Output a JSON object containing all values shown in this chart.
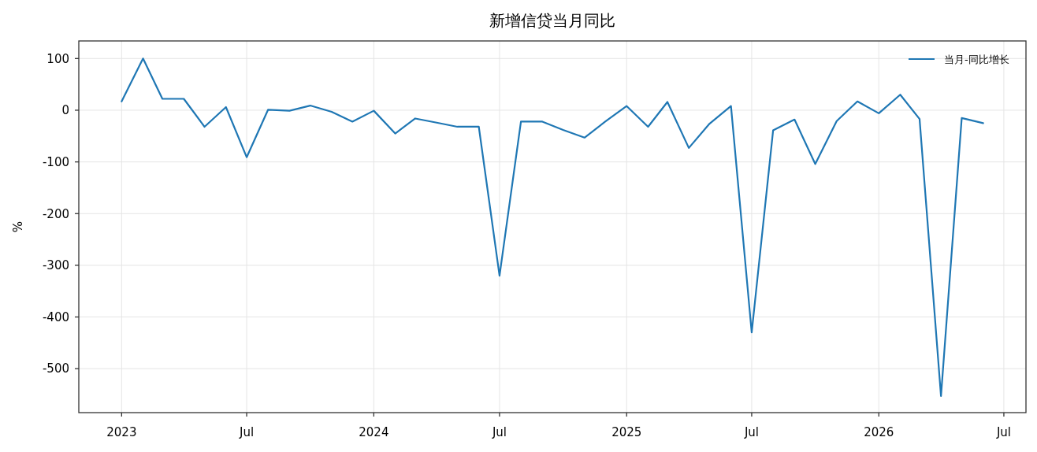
{
  "chart_data": {
    "type": "line",
    "title": "新增信贷当月同比",
    "ylabel": "%",
    "x": [
      "2023-01",
      "2023-02",
      "2023-03",
      "2023-04",
      "2023-05",
      "2023-06",
      "2023-07",
      "2023-08",
      "2023-09",
      "2023-10",
      "2023-11",
      "2023-12",
      "2024-01",
      "2024-02",
      "2024-03",
      "2024-04",
      "2024-05",
      "2024-06",
      "2024-07",
      "2024-08",
      "2024-09",
      "2024-10",
      "2024-11",
      "2024-12",
      "2025-01",
      "2025-02",
      "2025-03",
      "2025-04",
      "2025-05",
      "2025-06",
      "2025-07",
      "2025-08",
      "2025-09",
      "2025-10",
      "2025-11",
      "2025-12",
      "2026-01",
      "2026-02",
      "2026-03",
      "2026-04",
      "2026-05",
      "2026-06"
    ],
    "series": [
      {
        "name": "当月-同比增长",
        "color": "#1f77b4",
        "values": [
          17,
          100,
          22,
          22,
          -32,
          6,
          -91,
          1,
          -1,
          9,
          -3,
          -22,
          -1,
          -45,
          -16,
          -24,
          -32,
          -32,
          -320,
          -22,
          -22,
          -38,
          -53,
          -22,
          8,
          -32,
          16,
          -73,
          -26,
          8,
          -430,
          -39,
          -18,
          -104,
          -21,
          17,
          -6,
          30,
          -17,
          -553,
          -15,
          -25
        ]
      }
    ],
    "xlim": [
      "2022-10-31",
      "2026-08-02"
    ],
    "xticks": [
      {
        "value": "2023-01-01",
        "label": "2023"
      },
      {
        "value": "2023-07-01",
        "label": "Jul"
      },
      {
        "value": "2024-01-01",
        "label": "2024"
      },
      {
        "value": "2024-07-01",
        "label": "Jul"
      },
      {
        "value": "2025-01-01",
        "label": "2025"
      },
      {
        "value": "2025-07-01",
        "label": "Jul"
      },
      {
        "value": "2026-01-01",
        "label": "2026"
      },
      {
        "value": "2026-07-01",
        "label": "Jul"
      }
    ],
    "ylim": [
      -585,
      134
    ],
    "yticks": [
      100,
      0,
      -100,
      -200,
      -300,
      -400,
      -500
    ],
    "grid": true,
    "legend": "top right"
  }
}
